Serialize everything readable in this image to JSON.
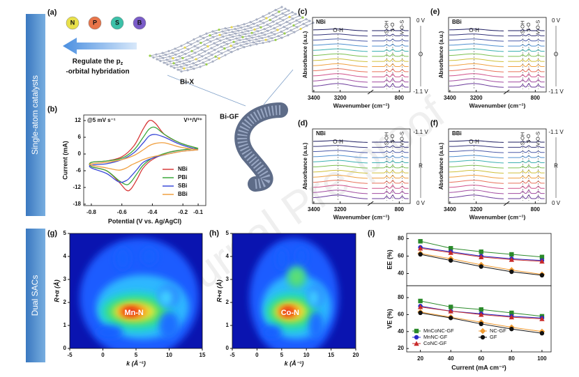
{
  "watermark": "Journal Pre-proof",
  "sidebar": {
    "top": "Single-atom catalysts",
    "bottom": "Dual SACs"
  },
  "panel_a": {
    "label": "(a)",
    "dopants": [
      "N",
      "P",
      "S",
      "B"
    ],
    "dopant_colors": [
      "#e8e04a",
      "#e8754a",
      "#3cc0a8",
      "#7a5cc8"
    ],
    "caption_1": "Regulate the p",
    "caption_sub": "z",
    "caption_2": "-orbital hybridation",
    "material": "Bi-X",
    "electrode": "Bi-GF"
  },
  "chart_data": [
    {
      "type": "line",
      "label": "(b)",
      "title": "@5 mV s⁻¹",
      "subtitle": "V³⁺/V²⁺",
      "xlabel": "Potential (V vs. Ag/AgCl)",
      "ylabel": "Current (mA)",
      "xlim": [
        -0.85,
        -0.05
      ],
      "xticks": [
        -0.8,
        -0.6,
        -0.4,
        -0.2,
        -0.1
      ],
      "ylim": [
        -18.5,
        14
      ],
      "yticks": [
        12,
        6,
        0,
        -6,
        -12,
        -18
      ],
      "legend": "lower right",
      "x": [
        -0.1,
        -0.2,
        -0.3,
        -0.4,
        -0.46,
        -0.5,
        -0.54,
        -0.57,
        -0.62,
        -0.7,
        -0.8,
        -0.8,
        -0.7,
        -0.6,
        -0.52,
        -0.46,
        -0.42,
        -0.38,
        -0.32,
        -0.22,
        -0.1
      ],
      "series": [
        {
          "name": "NBi",
          "color": "#d83a3a",
          "values": [
            2,
            1.5,
            0.5,
            -2,
            -5,
            -9,
            -12.5,
            -13,
            -10,
            -6,
            -4.5,
            -3,
            -2.5,
            -1,
            3,
            9,
            12,
            11,
            7,
            4,
            2
          ]
        },
        {
          "name": "PBi",
          "color": "#3aa83a",
          "values": [
            2,
            1.5,
            0.5,
            -1.5,
            -4,
            -7,
            -10,
            -11,
            -9.5,
            -6,
            -4.5,
            -3,
            -2.5,
            -1.5,
            1.5,
            6,
            9,
            9.5,
            7,
            4,
            2
          ]
        },
        {
          "name": "SBi",
          "color": "#3a4ad8",
          "values": [
            1.5,
            1,
            0,
            -1.5,
            -3,
            -5.5,
            -8,
            -9.5,
            -10,
            -7,
            -5,
            -4,
            -3.5,
            -2,
            0.5,
            4,
            6.5,
            7,
            6,
            3.5,
            1.5
          ]
        },
        {
          "name": "BBi",
          "color": "#f0a040",
          "values": [
            1.5,
            1,
            0,
            -1,
            -2,
            -3,
            -4,
            -5,
            -5.8,
            -5,
            -4,
            -3.5,
            -3,
            -2,
            -0.5,
            1.5,
            3,
            3.8,
            4,
            2.5,
            1.5
          ]
        }
      ]
    },
    {
      "type": "spectra",
      "label": "(c)",
      "title": "NBi",
      "xlabel": "Wavenumber (cm⁻¹)",
      "ylabel": "Absorbance (a.u.)",
      "x_segments": [
        [
          3410,
          2980
        ],
        [
          1000,
          720
        ]
      ],
      "xticks": [
        3400,
        3200,
        800
      ],
      "annotations": [
        "O-H",
        "S-OH",
        "S-O",
        "V-O-S"
      ],
      "potential_top": "0 V",
      "process": "O",
      "potential_bottom": "-1.1 V",
      "line_colors": [
        "#1a1a5e",
        "#33337a",
        "#4a5aa8",
        "#4f8fd0",
        "#3cb0b0",
        "#7cc050",
        "#d0c03a",
        "#f0a040",
        "#e8705a",
        "#d0508a",
        "#a04aa0",
        "#6a3a9a"
      ]
    },
    {
      "type": "spectra",
      "label": "(d)",
      "title": "NBi",
      "xlabel": "Wavenumber (cm⁻¹)",
      "ylabel": "Absorbance (a.u.)",
      "x_segments": [
        [
          3410,
          2980
        ],
        [
          1000,
          720
        ]
      ],
      "xticks": [
        3400,
        3200,
        800
      ],
      "annotations": [
        "O-H",
        "S-OH",
        "S-O",
        "V-O-S"
      ],
      "potential_top": "-1.1 V",
      "process": "R",
      "potential_bottom": "0 V",
      "line_colors": [
        "#1a1a5e",
        "#33337a",
        "#4a5aa8",
        "#4f8fd0",
        "#3cb0b0",
        "#7cc050",
        "#d0c03a",
        "#f0a040",
        "#e8705a",
        "#d0508a",
        "#a04aa0",
        "#6a3a9a"
      ]
    },
    {
      "type": "spectra",
      "label": "(e)",
      "title": "BBi",
      "xlabel": "Wavenumber (cm⁻¹)",
      "ylabel": "Absorbance (a.u.)",
      "x_segments": [
        [
          3410,
          2980
        ],
        [
          1000,
          720
        ]
      ],
      "xticks": [
        3400,
        3200,
        800
      ],
      "annotations": [
        "O-H",
        "S-OH",
        "S-O",
        "V-O-S"
      ],
      "potential_top": "0 V",
      "process": "O",
      "potential_bottom": "-1.1 V",
      "line_colors": [
        "#1a1a5e",
        "#33337a",
        "#4a5aa8",
        "#4f8fd0",
        "#3cb0b0",
        "#7cc050",
        "#d0c03a",
        "#f0a040",
        "#e8705a",
        "#d0508a",
        "#a04aa0",
        "#6a3a9a"
      ]
    },
    {
      "type": "spectra",
      "label": "(f)",
      "title": "BBi",
      "xlabel": "Wavenumber (cm⁻¹)",
      "ylabel": "Absorbance (a.u.)",
      "x_segments": [
        [
          3410,
          2980
        ],
        [
          1000,
          720
        ]
      ],
      "xticks": [
        3400,
        3200,
        800
      ],
      "annotations": [
        "O-H",
        "S-OH",
        "S-O",
        "V-O-S"
      ],
      "potential_top": "-1.1 V",
      "process": "R",
      "potential_bottom": "0 V",
      "line_colors": [
        "#1a1a5e",
        "#33337a",
        "#4a5aa8",
        "#4f8fd0",
        "#3cb0b0",
        "#7cc050",
        "#d0c03a",
        "#f0a040",
        "#e8705a",
        "#d0508a",
        "#a04aa0",
        "#6a3a9a"
      ]
    },
    {
      "type": "heatmap",
      "label": "(g)",
      "annotation": "Mn-N",
      "xlabel": "k (Å⁻¹)",
      "ylabel": "R+α (Å)",
      "xlim": [
        -5,
        15
      ],
      "xticks": [
        -5,
        0,
        5,
        10,
        15
      ],
      "ylim": [
        0,
        5
      ],
      "yticks": [
        0,
        1,
        2,
        3,
        4,
        5
      ]
    },
    {
      "type": "heatmap",
      "label": "(h)",
      "annotation": "Co-N",
      "xlabel": "k (Å⁻¹)",
      "ylabel": "R+α (Å)",
      "xlim": [
        -5,
        20
      ],
      "xticks": [
        -5,
        0,
        5,
        10,
        15,
        20
      ],
      "ylim": [
        0,
        5
      ],
      "yticks": [
        0,
        1,
        2,
        3,
        4,
        5
      ]
    },
    {
      "type": "line",
      "label": "(i)",
      "ylabel": "EE (%)",
      "x": [
        20,
        40,
        60,
        80,
        100
      ],
      "xlim": [
        11,
        106
      ],
      "ylim": [
        26,
        86
      ],
      "yticks": [
        40,
        60,
        80
      ],
      "series": [
        {
          "color": "#2a8a2a",
          "marker": "square",
          "values": [
            77,
            69,
            65,
            62,
            59
          ]
        },
        {
          "color": "#2a2ac8",
          "marker": "circle",
          "values": [
            70,
            65,
            60,
            57,
            55
          ]
        },
        {
          "color": "#c82a2a",
          "marker": "triangle",
          "values": [
            69,
            64,
            59,
            56,
            54
          ]
        },
        {
          "color": "#f09a30",
          "marker": "diamond",
          "values": [
            63,
            57,
            50,
            44,
            39
          ]
        },
        {
          "color": "#111111",
          "marker": "circle",
          "values": [
            62,
            55,
            48,
            42,
            38
          ]
        }
      ]
    },
    {
      "type": "line",
      "ylabel": "VE (%)",
      "xlabel": "Current (mA cm⁻²)",
      "x": [
        20,
        40,
        60,
        80,
        100
      ],
      "xlim": [
        11,
        106
      ],
      "xticks": [
        20,
        40,
        60,
        80,
        100
      ],
      "ylim": [
        16,
        94
      ],
      "yticks": [
        20,
        40,
        60,
        80
      ],
      "legend": "lower left",
      "series": [
        {
          "name": "MnCoNC-GF",
          "color": "#2a8a2a",
          "marker": "square",
          "values": [
            76,
            69,
            66,
            62,
            58
          ]
        },
        {
          "name": "MnNC-GF",
          "color": "#2a2ac8",
          "marker": "circle",
          "values": [
            70,
            64,
            61,
            58,
            56
          ]
        },
        {
          "name": "CoNC-GF",
          "color": "#c82a2a",
          "marker": "triangle",
          "values": [
            69,
            64,
            60,
            57,
            55
          ]
        },
        {
          "name": "NC-GF",
          "color": "#f09a30",
          "marker": "diamond",
          "values": [
            63,
            57,
            51,
            45,
            40
          ]
        },
        {
          "name": "GF",
          "color": "#111111",
          "marker": "circle",
          "values": [
            62,
            56,
            49,
            43,
            38
          ]
        }
      ]
    }
  ]
}
